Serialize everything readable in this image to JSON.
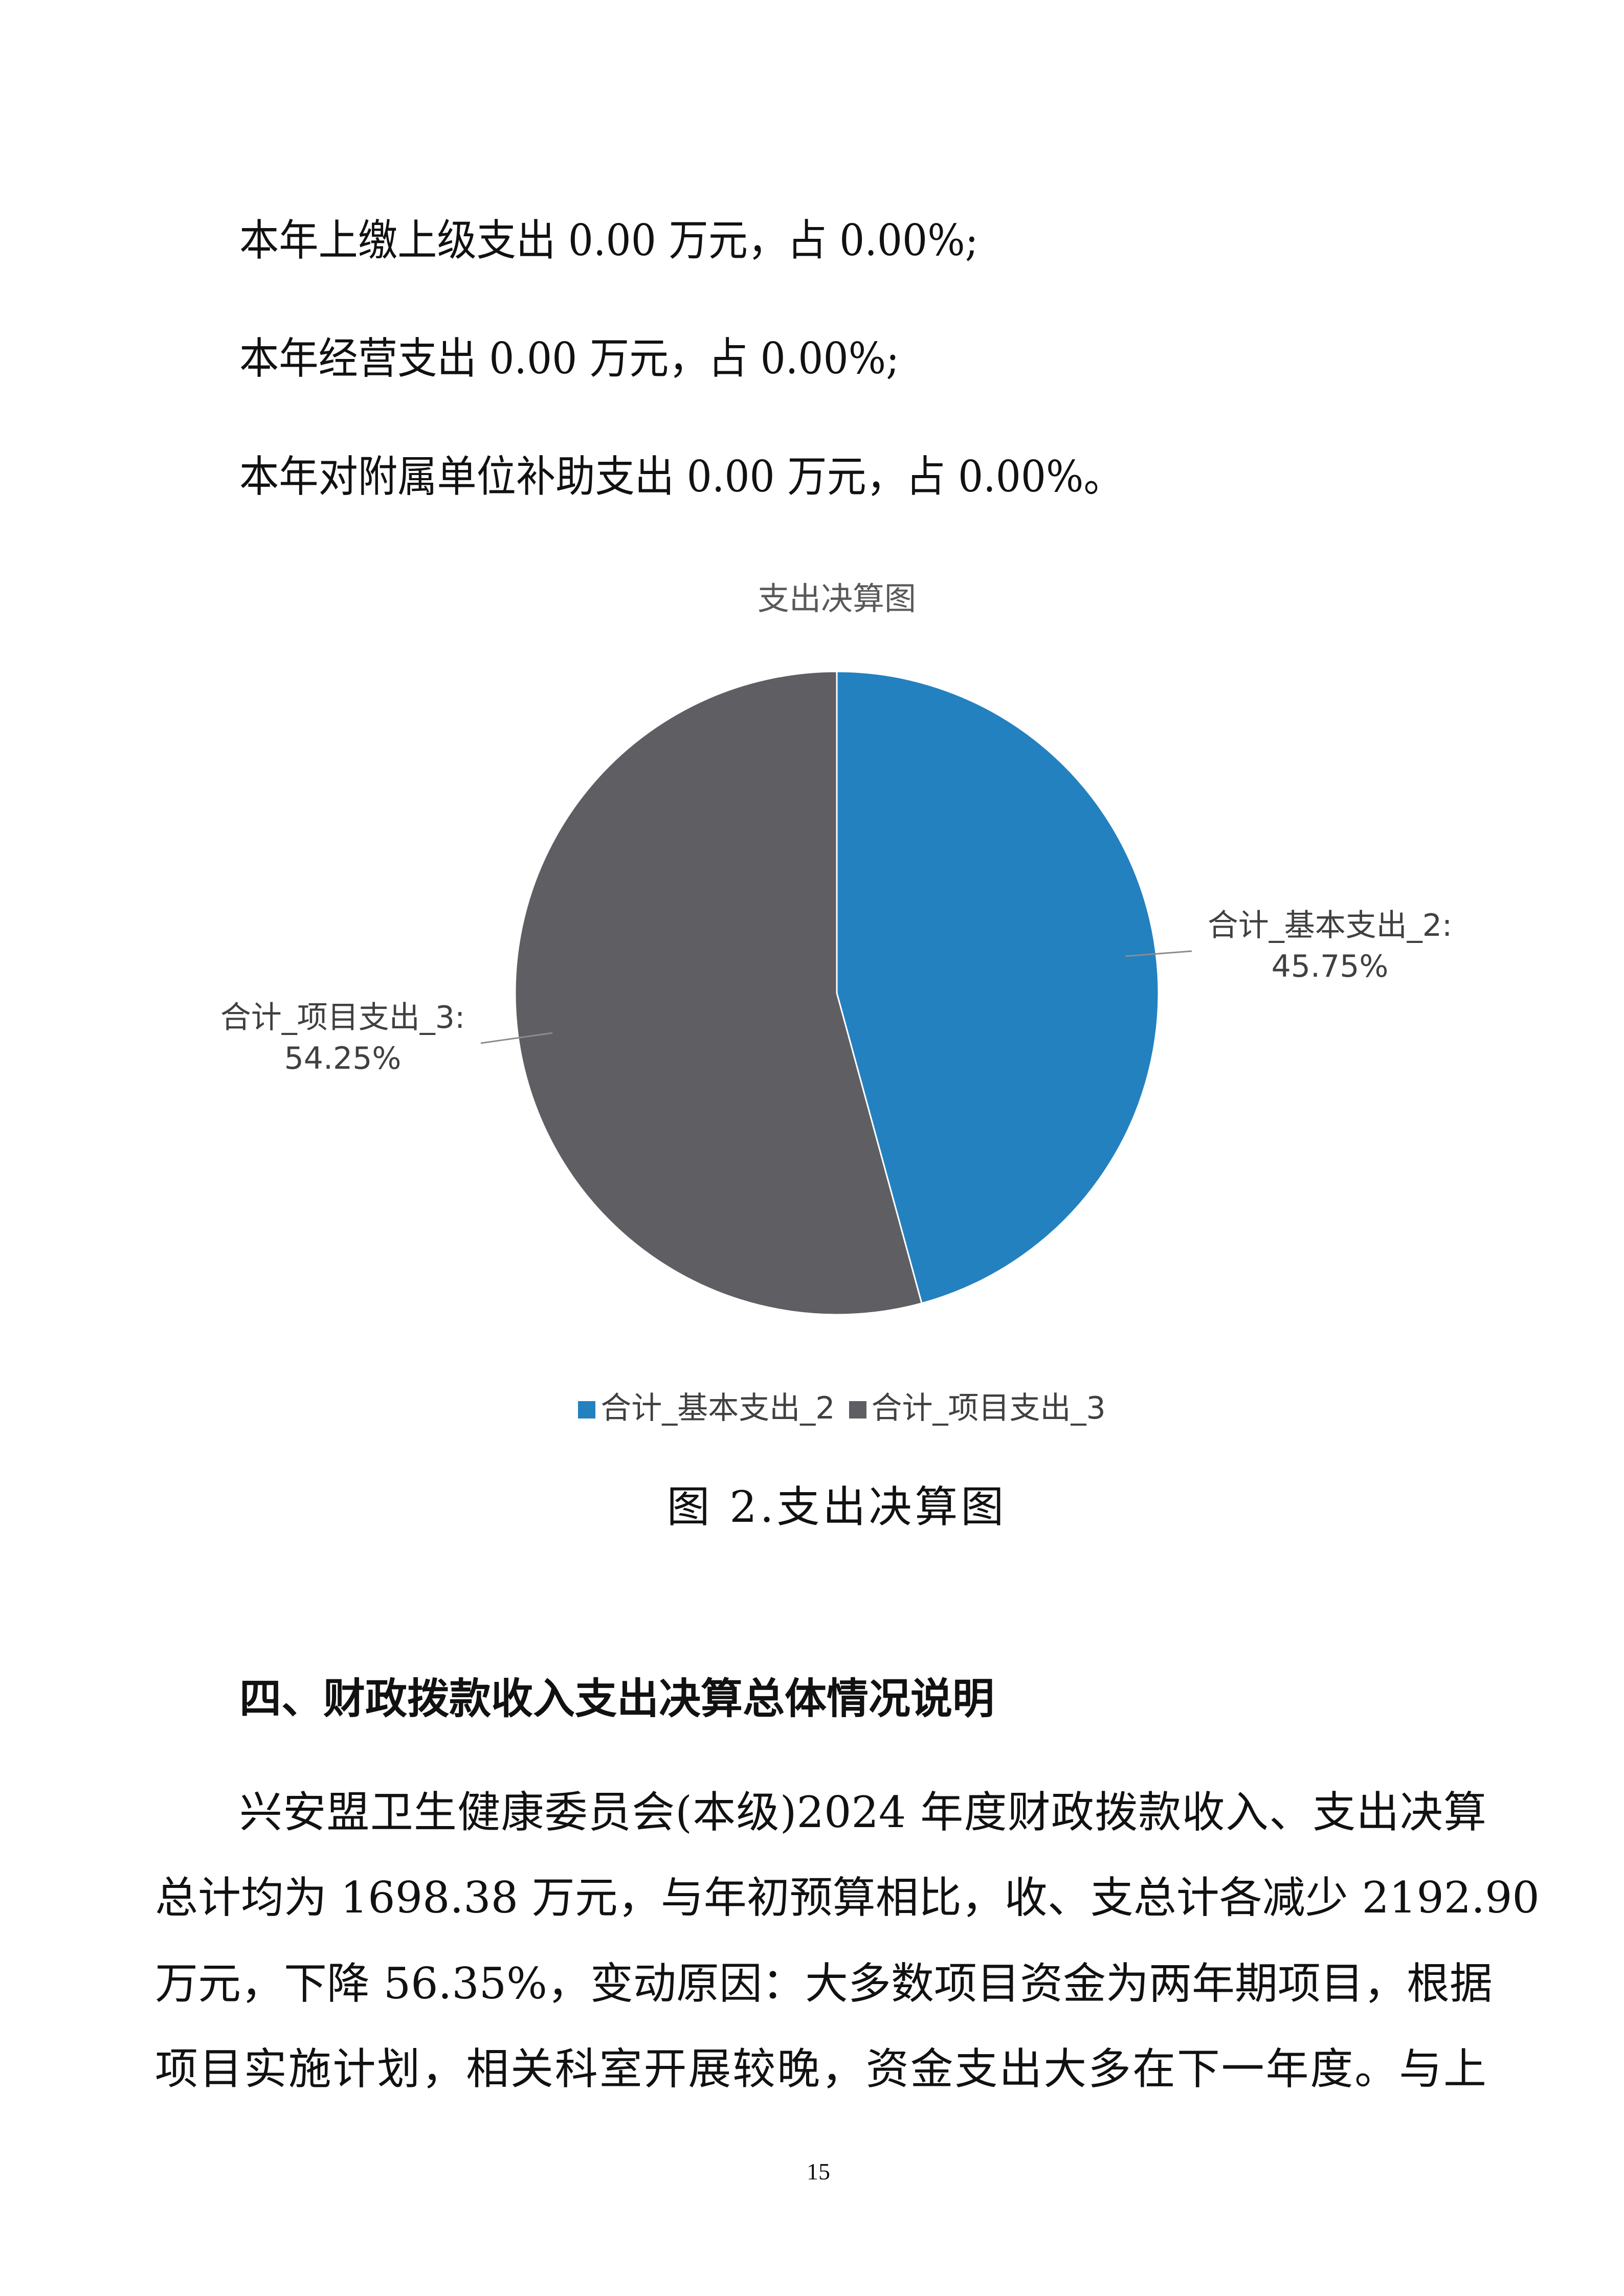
{
  "body_lines": [
    "本年上缴上级支出 0.00 万元，占 0.00%;",
    "本年经营支出 0.00 万元，占 0.00%;",
    "本年对附属单位补助支出 0.00 万元，占 0.00%。"
  ],
  "chart_data": {
    "type": "pie",
    "title": "支出决算图",
    "categories": [
      "合计_基本支出_2",
      "合计_项目支出_3"
    ],
    "values": [
      45.75,
      54.25
    ],
    "unit": "%",
    "colors": [
      "#2381C0",
      "#5F5E63"
    ],
    "data_labels": [
      {
        "name": "合计_基本支出_2:",
        "value": "45.75%"
      },
      {
        "name": "合计_项目支出_3:",
        "value": "54.25%"
      }
    ],
    "legend": {
      "placement": "bottom",
      "entries": [
        "合计_基本支出_2",
        "合计_项目支出_3"
      ]
    }
  },
  "caption": "图 2.支出决算图",
  "section": {
    "heading": "四、财政拨款收入支出决算总体情况说明",
    "paragraph_lines": [
      "兴安盟卫生健康委员会(本级)2024 年度财政拨款收入、支出决算",
      "总计均为 1698.38 万元，与年初预算相比，收、支总计各减少 2192.90",
      "万元，下降 56.35%，变动原因：大多数项目资金为两年期项目，根据",
      "项目实施计划，相关科室开展较晚，资金支出大多在下一年度。与上"
    ]
  },
  "page_number": "15"
}
